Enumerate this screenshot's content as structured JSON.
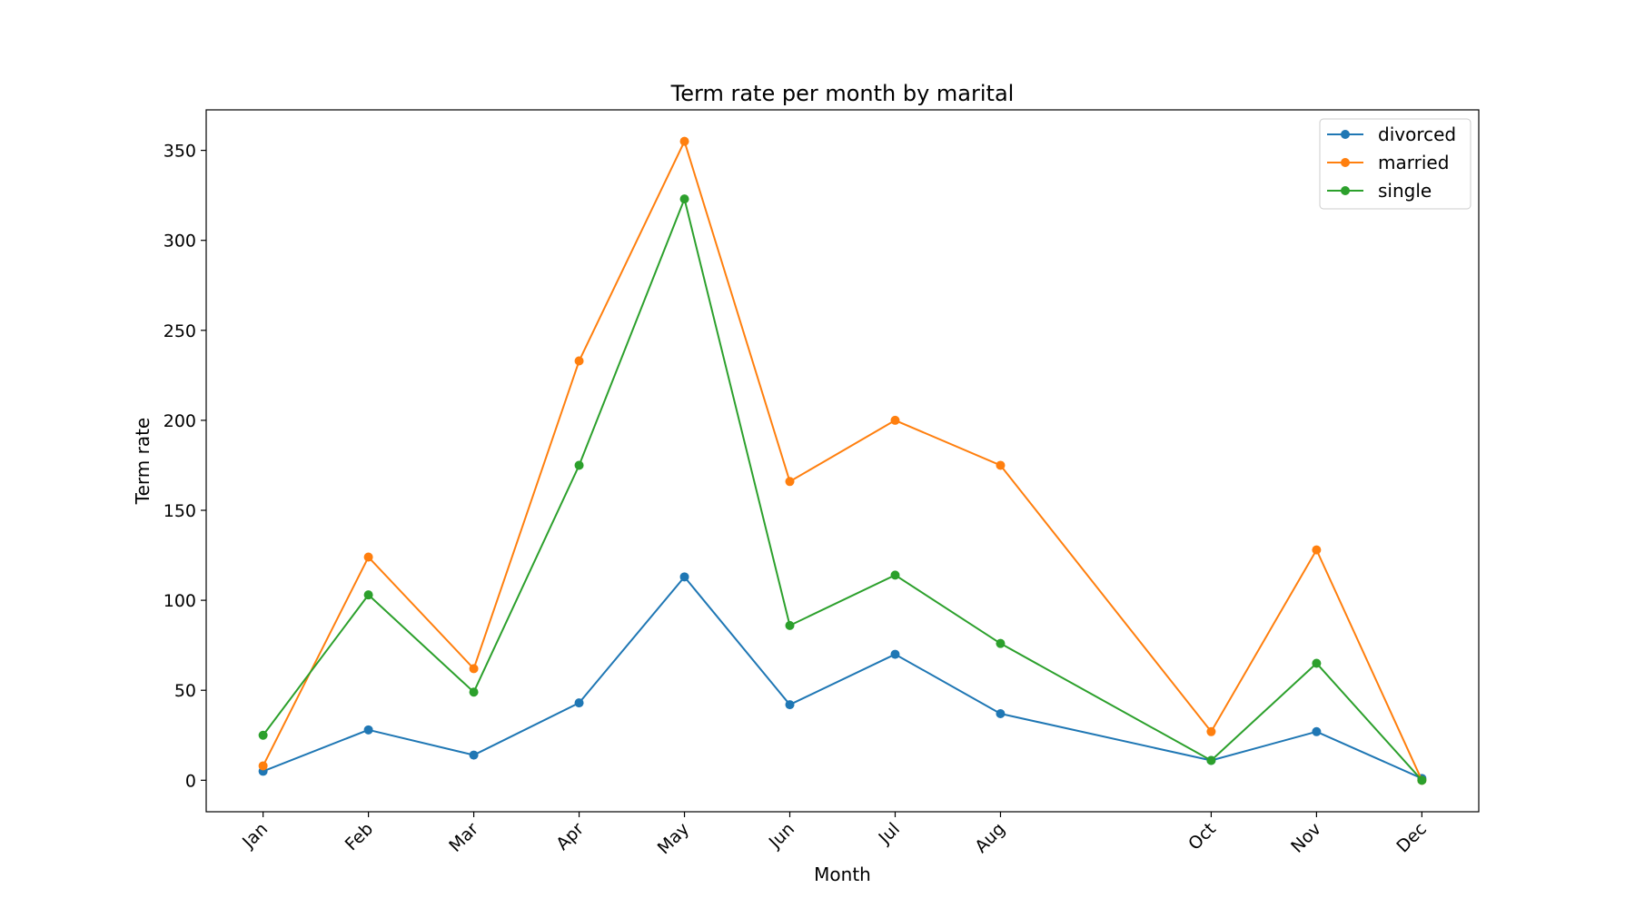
{
  "chart_data": {
    "type": "line",
    "title": "Term rate per month by marital",
    "xlabel": "Month",
    "ylabel": "Term rate",
    "x": [
      1,
      2,
      3,
      4,
      5,
      6,
      7,
      8,
      10,
      11,
      12
    ],
    "tick_labels": [
      "Jan",
      "Feb",
      "Mar",
      "Apr",
      "May",
      "Jun",
      "Jul",
      "Aug",
      "Oct",
      "Nov",
      "Dec"
    ],
    "xlim": [
      0.46,
      12.54
    ],
    "ylim": [
      -17.5,
      372.5
    ],
    "yticks": [
      0,
      50,
      100,
      150,
      200,
      250,
      300,
      350
    ],
    "grid": false,
    "legend_position": "top-right",
    "series": [
      {
        "name": "divorced",
        "color": "#1f77b4",
        "values": [
          5,
          28,
          14,
          43,
          113,
          42,
          70,
          37,
          11,
          27,
          1
        ]
      },
      {
        "name": "married",
        "color": "#ff7f0e",
        "values": [
          8,
          124,
          62,
          233,
          355,
          166,
          200,
          175,
          27,
          128,
          0
        ]
      },
      {
        "name": "single",
        "color": "#2ca02c",
        "values": [
          25,
          103,
          49,
          175,
          323,
          86,
          114,
          76,
          11,
          65,
          0
        ]
      }
    ]
  }
}
